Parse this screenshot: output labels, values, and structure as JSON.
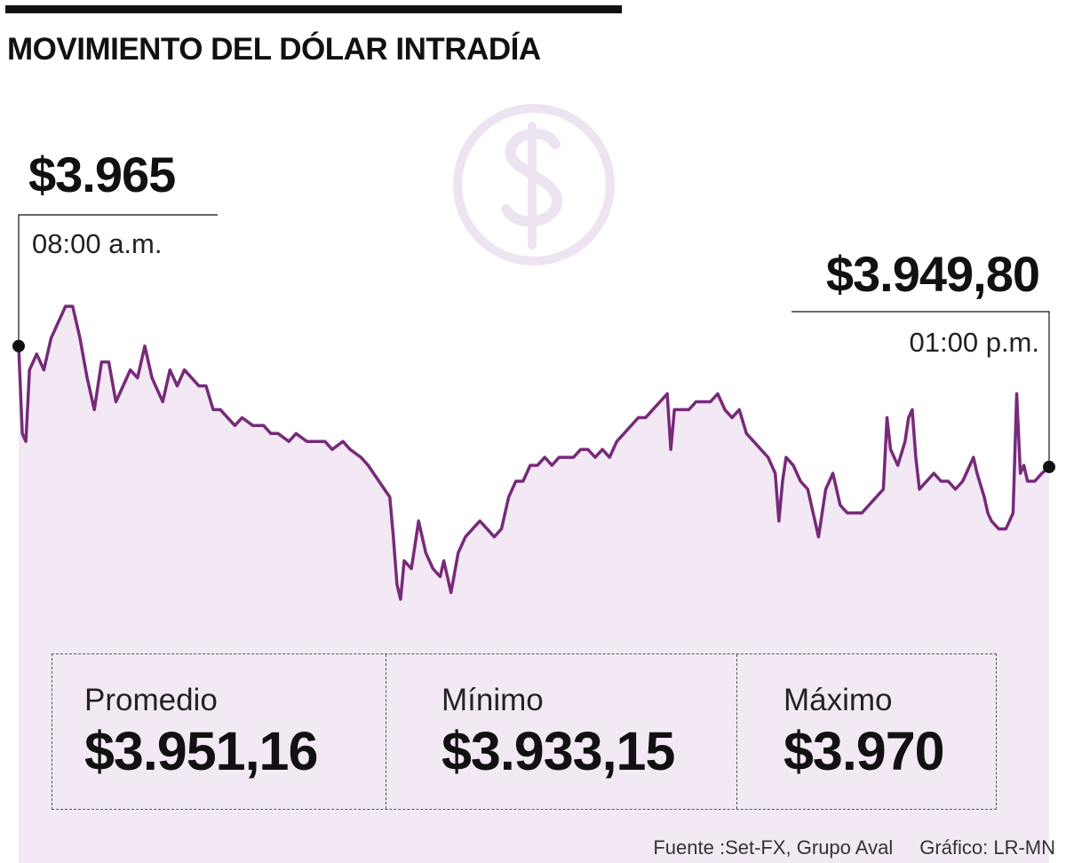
{
  "header": {
    "title": "MOVIMIENTO DEL DÓLAR INTRADÍA"
  },
  "colors": {
    "line": "#772a7a",
    "area": "#f3e9f5",
    "icon": "#eee3f0",
    "text": "#111111"
  },
  "icon": "dollar-coin-icon",
  "callouts": {
    "start": {
      "value": "$3.965",
      "time": "08:00 a.m."
    },
    "end": {
      "value": "$3.949,80",
      "time": "01:00 p.m."
    }
  },
  "stats": [
    {
      "label": "Promedio",
      "value": "$3.951,16"
    },
    {
      "label": "Mínimo",
      "value": "$3.933,15"
    },
    {
      "label": "Máximo",
      "value": "$3.970"
    }
  ],
  "footer": {
    "source": "Fuente :Set-FX, Grupo Aval",
    "credit": "Gráfico: LR-MN"
  },
  "chart_data": {
    "type": "area",
    "x_start": "08:00 a.m.",
    "x_end": "01:00 p.m.",
    "ylim": [
      3925,
      3975
    ],
    "grid": false,
    "points": [
      [
        0,
        3965
      ],
      [
        1,
        3954
      ],
      [
        2,
        3953
      ],
      [
        3,
        3962
      ],
      [
        5,
        3964
      ],
      [
        7,
        3962
      ],
      [
        8,
        3964
      ],
      [
        9,
        3966
      ],
      [
        10,
        3967
      ],
      [
        11,
        3968
      ],
      [
        12,
        3969
      ],
      [
        13,
        3970
      ],
      [
        15,
        3970
      ],
      [
        16,
        3968
      ],
      [
        17,
        3966
      ],
      [
        19,
        3961
      ],
      [
        21,
        3957
      ],
      [
        23,
        3963
      ],
      [
        25,
        3963
      ],
      [
        27,
        3958
      ],
      [
        29,
        3960
      ],
      [
        31,
        3962
      ],
      [
        33,
        3961
      ],
      [
        35,
        3965
      ],
      [
        37,
        3961
      ],
      [
        38,
        3960
      ],
      [
        40,
        3958
      ],
      [
        42,
        3962
      ],
      [
        44,
        3960
      ],
      [
        46,
        3962
      ],
      [
        48,
        3961
      ],
      [
        50,
        3960
      ],
      [
        52,
        3960
      ],
      [
        54,
        3957
      ],
      [
        56,
        3957
      ],
      [
        58,
        3956
      ],
      [
        60,
        3955
      ],
      [
        62,
        3956
      ],
      [
        65,
        3955
      ],
      [
        68,
        3955
      ],
      [
        70,
        3954
      ],
      [
        72,
        3954
      ],
      [
        75,
        3953
      ],
      [
        77,
        3954
      ],
      [
        80,
        3953
      ],
      [
        82,
        3953
      ],
      [
        85,
        3953
      ],
      [
        87,
        3952
      ],
      [
        90,
        3953
      ],
      [
        92,
        3952
      ],
      [
        95,
        3951
      ],
      [
        97,
        3950
      ],
      [
        100,
        3948
      ],
      [
        103,
        3946
      ],
      [
        104,
        3941
      ],
      [
        105,
        3935
      ],
      [
        106,
        3933.15
      ],
      [
        107,
        3938
      ],
      [
        109,
        3937
      ],
      [
        110,
        3940
      ],
      [
        111,
        3943
      ],
      [
        113,
        3939
      ],
      [
        115,
        3937
      ],
      [
        117,
        3936
      ],
      [
        118,
        3938
      ],
      [
        120,
        3934
      ],
      [
        122,
        3939
      ],
      [
        124,
        3941
      ],
      [
        126,
        3942
      ],
      [
        128,
        3943
      ],
      [
        130,
        3942
      ],
      [
        132,
        3941
      ],
      [
        134,
        3942
      ],
      [
        136,
        3946
      ],
      [
        138,
        3948
      ],
      [
        140,
        3948
      ],
      [
        142,
        3950
      ],
      [
        144,
        3950
      ],
      [
        146,
        3951
      ],
      [
        148,
        3950
      ],
      [
        150,
        3951
      ],
      [
        152,
        3951
      ],
      [
        154,
        3951
      ],
      [
        156,
        3952
      ],
      [
        158,
        3952
      ],
      [
        160,
        3951
      ],
      [
        162,
        3952
      ],
      [
        164,
        3951
      ],
      [
        166,
        3953
      ],
      [
        168,
        3954
      ],
      [
        170,
        3955
      ],
      [
        172,
        3956
      ],
      [
        174,
        3956
      ],
      [
        176,
        3957
      ],
      [
        178,
        3958
      ],
      [
        180,
        3959
      ],
      [
        181,
        3952
      ],
      [
        182,
        3957
      ],
      [
        184,
        3957
      ],
      [
        186,
        3957
      ],
      [
        188,
        3958
      ],
      [
        190,
        3958
      ],
      [
        192,
        3958
      ],
      [
        194,
        3959
      ],
      [
        196,
        3957
      ],
      [
        198,
        3956
      ],
      [
        200,
        3957
      ],
      [
        202,
        3954
      ],
      [
        204,
        3953
      ],
      [
        206,
        3952
      ],
      [
        208,
        3951
      ],
      [
        210,
        3949
      ],
      [
        211,
        3943
      ],
      [
        212,
        3948
      ],
      [
        213,
        3951
      ],
      [
        215,
        3950
      ],
      [
        217,
        3948
      ],
      [
        219,
        3947
      ],
      [
        221,
        3943
      ],
      [
        222,
        3941
      ],
      [
        224,
        3947
      ],
      [
        226,
        3949
      ],
      [
        228,
        3945
      ],
      [
        230,
        3944
      ],
      [
        232,
        3944
      ],
      [
        234,
        3944
      ],
      [
        236,
        3945
      ],
      [
        238,
        3946
      ],
      [
        240,
        3947
      ],
      [
        241,
        3956
      ],
      [
        242,
        3952
      ],
      [
        244,
        3950
      ],
      [
        246,
        3953
      ],
      [
        247,
        3956
      ],
      [
        248,
        3957
      ],
      [
        249,
        3951
      ],
      [
        250,
        3947
      ],
      [
        252,
        3948
      ],
      [
        254,
        3949
      ],
      [
        256,
        3948
      ],
      [
        258,
        3948
      ],
      [
        260,
        3947
      ],
      [
        262,
        3948
      ],
      [
        264,
        3950
      ],
      [
        265,
        3951
      ],
      [
        266,
        3949
      ],
      [
        268,
        3946
      ],
      [
        269,
        3944
      ],
      [
        270,
        3943
      ],
      [
        272,
        3942
      ],
      [
        274,
        3942
      ],
      [
        275,
        3943
      ],
      [
        276,
        3944
      ],
      [
        277,
        3959
      ],
      [
        278,
        3949
      ],
      [
        279,
        3950
      ],
      [
        280,
        3948
      ],
      [
        282,
        3948
      ],
      [
        284,
        3949
      ],
      [
        286,
        3949.8
      ]
    ]
  }
}
